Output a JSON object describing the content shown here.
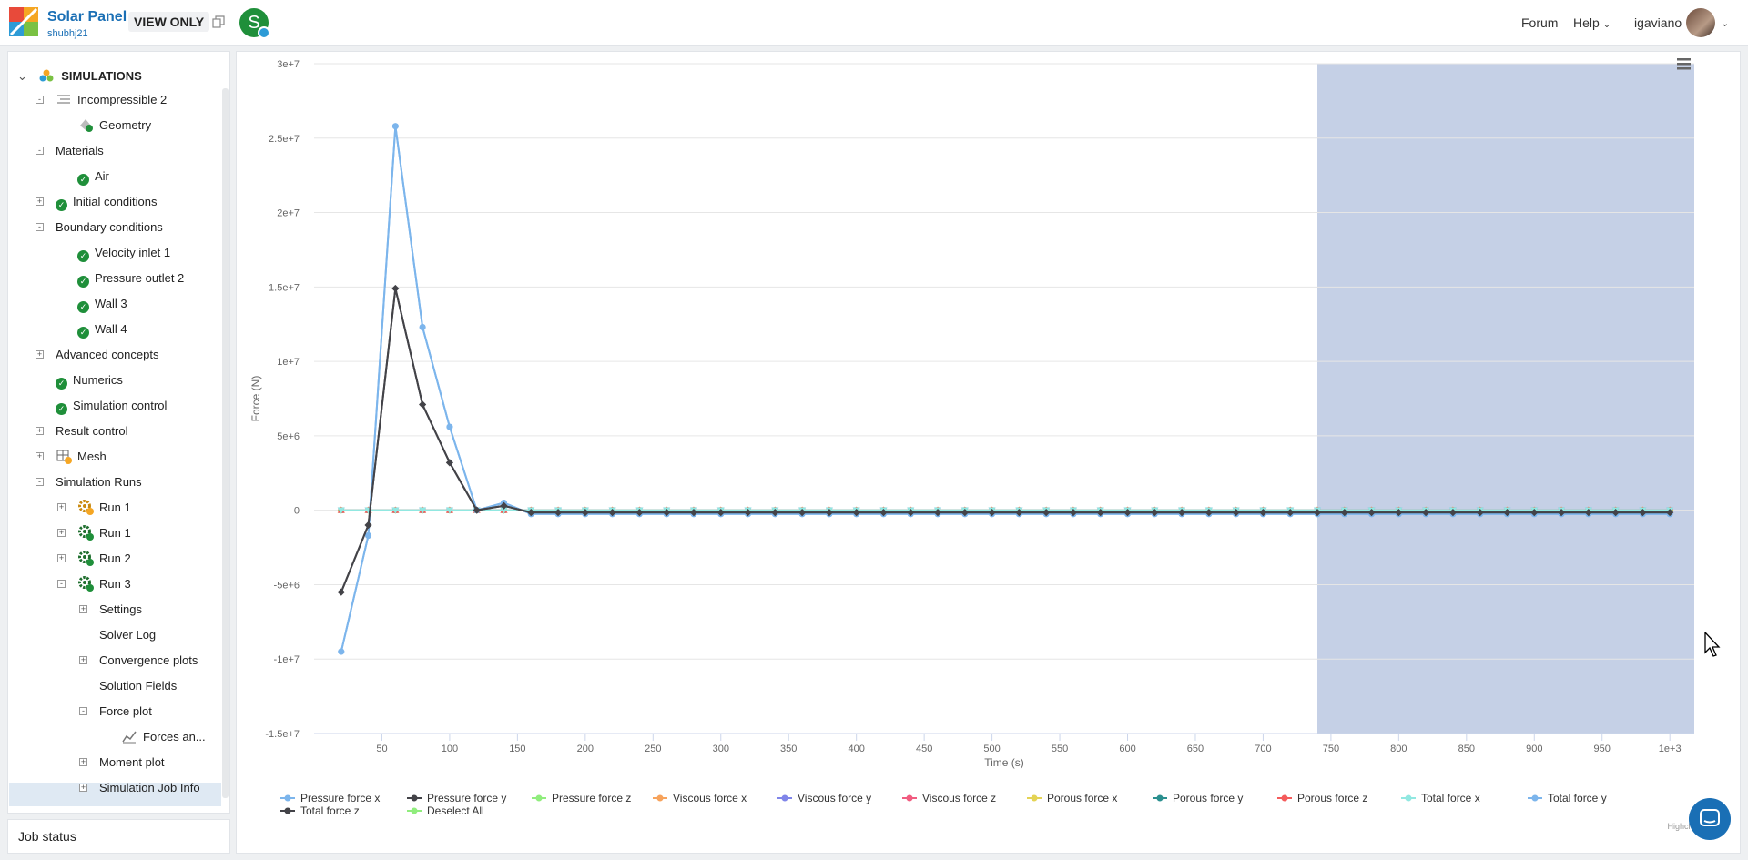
{
  "header": {
    "project_title": "Solar Panel",
    "project_owner": "shubhj21",
    "view_only": "VIEW ONLY",
    "avatar_letter": "S",
    "nav_forum": "Forum",
    "nav_help": "Help",
    "user_name": "igaviano"
  },
  "sidebar": {
    "root_label": "SIMULATIONS",
    "tree": [
      {
        "label": "Incompressible 2",
        "toggle": "-",
        "icon": "sim-icon"
      },
      {
        "label": "Geometry",
        "icon": "geometry-icon"
      },
      {
        "label": "Materials",
        "toggle": "-"
      },
      {
        "label": "Air",
        "icon": "check-icon"
      },
      {
        "label": "Initial conditions",
        "toggle": "+",
        "icon": "check-icon"
      },
      {
        "label": "Boundary conditions",
        "toggle": "-"
      },
      {
        "label": "Velocity inlet 1",
        "icon": "check-icon"
      },
      {
        "label": "Pressure outlet 2",
        "icon": "check-icon"
      },
      {
        "label": "Wall 3",
        "icon": "check-icon"
      },
      {
        "label": "Wall 4",
        "icon": "check-icon"
      },
      {
        "label": "Advanced concepts",
        "toggle": "+"
      },
      {
        "label": "Numerics",
        "icon": "check-icon"
      },
      {
        "label": "Simulation control",
        "icon": "check-icon"
      },
      {
        "label": "Result control",
        "toggle": "+"
      },
      {
        "label": "Mesh",
        "toggle": "+",
        "icon": "mesh-icon"
      },
      {
        "label": "Simulation Runs",
        "toggle": "-"
      },
      {
        "label": "Run 1",
        "toggle": "+",
        "icon": "gear-warning-icon"
      },
      {
        "label": "Run 1",
        "toggle": "+",
        "icon": "gear-check-icon"
      },
      {
        "label": "Run 2",
        "toggle": "+",
        "icon": "gear-check-icon"
      },
      {
        "label": "Run 3",
        "toggle": "-",
        "icon": "gear-check-icon"
      },
      {
        "label": "Settings",
        "toggle": "+"
      },
      {
        "label": "Solver Log"
      },
      {
        "label": "Convergence plots",
        "toggle": "+"
      },
      {
        "label": "Solution Fields"
      },
      {
        "label": "Force plot",
        "toggle": "-"
      },
      {
        "label": "Forces an...",
        "icon": "chart-icon",
        "selected": true
      },
      {
        "label": "Moment plot",
        "toggle": "+"
      },
      {
        "label": "Simulation Job Info",
        "toggle": "+"
      }
    ],
    "job_status": "Job status"
  },
  "chart_data": {
    "type": "line",
    "title": "",
    "xlabel": "Time (s)",
    "ylabel": "Force (N)",
    "xlim": [
      0,
      1000
    ],
    "ylim": [
      -15000000,
      30000000
    ],
    "x_ticks": [
      "50",
      "100",
      "150",
      "200",
      "250",
      "300",
      "350",
      "400",
      "450",
      "500",
      "550",
      "600",
      "650",
      "700",
      "750",
      "800",
      "850",
      "900",
      "950",
      "1e+3"
    ],
    "y_ticks": [
      "3e+7",
      "2.5e+7",
      "2e+7",
      "1.5e+7",
      "1e+7",
      "5e+6",
      "0",
      "-5e+6",
      "-1e+7",
      "-1.5e+7"
    ],
    "highlight_x_range": [
      740,
      1010
    ],
    "x": [
      20,
      40,
      60,
      80,
      100,
      120,
      140,
      160,
      180,
      200,
      220,
      240,
      260,
      280,
      300,
      320,
      340,
      360,
      380,
      400,
      420,
      440,
      460,
      480,
      500,
      520,
      540,
      560,
      580,
      600,
      620,
      640,
      660,
      680,
      700,
      720,
      740,
      760,
      780,
      800,
      820,
      840,
      860,
      880,
      900,
      920,
      940,
      960,
      980,
      1000
    ],
    "series": [
      {
        "name": "Pressure force x",
        "color": "#7cb5ec",
        "marker": "circle",
        "values": [
          -9500000,
          -1700000,
          25800000,
          12300000,
          5600000,
          0,
          500000,
          -250000,
          -250000,
          -250000,
          -250000,
          -250000,
          -250000,
          -250000,
          -250000,
          -250000,
          -250000,
          -250000,
          -250000,
          -250000,
          -250000,
          -250000,
          -250000,
          -250000,
          -250000,
          -250000,
          -250000,
          -250000,
          -250000,
          -250000,
          -250000,
          -250000,
          -250000,
          -250000,
          -250000,
          -250000,
          -250000,
          -250000,
          -250000,
          -250000,
          -250000,
          -250000,
          -250000,
          -250000,
          -250000,
          -250000,
          -250000,
          -250000,
          -250000,
          -250000
        ]
      },
      {
        "name": "Pressure force y",
        "color": "#434348",
        "marker": "diamond",
        "values": [
          -5500000,
          -1000000,
          14900000,
          7100000,
          3200000,
          0,
          300000,
          -150000,
          -150000,
          -150000,
          -150000,
          -150000,
          -150000,
          -150000,
          -150000,
          -150000,
          -150000,
          -150000,
          -150000,
          -150000,
          -150000,
          -150000,
          -150000,
          -150000,
          -150000,
          -150000,
          -150000,
          -150000,
          -150000,
          -150000,
          -150000,
          -150000,
          -150000,
          -150000,
          -150000,
          -150000,
          -150000,
          -150000,
          -150000,
          -150000,
          -150000,
          -150000,
          -150000,
          -150000,
          -150000,
          -150000,
          -150000,
          -150000,
          -150000,
          -150000
        ]
      },
      {
        "name": "Pressure force z",
        "color": "#90ed7d",
        "marker": "square",
        "values": [
          0,
          0,
          0,
          0,
          0,
          0,
          0,
          0,
          0,
          0,
          0,
          0,
          0,
          0,
          0,
          0,
          0,
          0,
          0,
          0,
          0,
          0,
          0,
          0,
          0,
          0,
          0,
          0,
          0,
          0,
          0,
          0,
          0,
          0,
          0,
          0,
          0,
          0,
          0,
          0,
          0,
          0,
          0,
          0,
          0,
          0,
          0,
          0,
          0,
          0
        ]
      },
      {
        "name": "Viscous force x",
        "color": "#f7a35c",
        "marker": "triangle",
        "values": [
          0,
          0,
          0,
          0,
          0,
          0,
          0,
          0,
          0,
          0,
          0,
          0,
          0,
          0,
          0,
          0,
          0,
          0,
          0,
          0,
          0,
          0,
          0,
          0,
          0,
          0,
          0,
          0,
          0,
          0,
          0,
          0,
          0,
          0,
          0,
          0,
          0,
          0,
          0,
          0,
          0,
          0,
          0,
          0,
          0,
          0,
          0,
          0,
          0,
          0
        ]
      },
      {
        "name": "Viscous force y",
        "color": "#8085e9",
        "marker": "triangle-down",
        "values": [
          0,
          0,
          0,
          0,
          0,
          0,
          0,
          0,
          0,
          0,
          0,
          0,
          0,
          0,
          0,
          0,
          0,
          0,
          0,
          0,
          0,
          0,
          0,
          0,
          0,
          0,
          0,
          0,
          0,
          0,
          0,
          0,
          0,
          0,
          0,
          0,
          0,
          0,
          0,
          0,
          0,
          0,
          0,
          0,
          0,
          0,
          0,
          0,
          0,
          0
        ]
      },
      {
        "name": "Viscous force z",
        "color": "#f15c80",
        "marker": "circle",
        "values": [
          0,
          0,
          0,
          0,
          0,
          0,
          0,
          0,
          0,
          0,
          0,
          0,
          0,
          0,
          0,
          0,
          0,
          0,
          0,
          0,
          0,
          0,
          0,
          0,
          0,
          0,
          0,
          0,
          0,
          0,
          0,
          0,
          0,
          0,
          0,
          0,
          0,
          0,
          0,
          0,
          0,
          0,
          0,
          0,
          0,
          0,
          0,
          0,
          0,
          0
        ]
      },
      {
        "name": "Porous force x",
        "color": "#e4d354",
        "marker": "diamond",
        "values": [
          0,
          0,
          0,
          0,
          0,
          0,
          0,
          0,
          0,
          0,
          0,
          0,
          0,
          0,
          0,
          0,
          0,
          0,
          0,
          0,
          0,
          0,
          0,
          0,
          0,
          0,
          0,
          0,
          0,
          0,
          0,
          0,
          0,
          0,
          0,
          0,
          0,
          0,
          0,
          0,
          0,
          0,
          0,
          0,
          0,
          0,
          0,
          0,
          0,
          0
        ]
      },
      {
        "name": "Porous force y",
        "color": "#2b908f",
        "marker": "square",
        "values": [
          0,
          0,
          0,
          0,
          0,
          0,
          0,
          0,
          0,
          0,
          0,
          0,
          0,
          0,
          0,
          0,
          0,
          0,
          0,
          0,
          0,
          0,
          0,
          0,
          0,
          0,
          0,
          0,
          0,
          0,
          0,
          0,
          0,
          0,
          0,
          0,
          0,
          0,
          0,
          0,
          0,
          0,
          0,
          0,
          0,
          0,
          0,
          0,
          0,
          0
        ]
      },
      {
        "name": "Porous force z",
        "color": "#f45b5b",
        "marker": "triangle",
        "values": [
          0,
          0,
          0,
          0,
          0,
          0,
          0,
          0,
          0,
          0,
          0,
          0,
          0,
          0,
          0,
          0,
          0,
          0,
          0,
          0,
          0,
          0,
          0,
          0,
          0,
          0,
          0,
          0,
          0,
          0,
          0,
          0,
          0,
          0,
          0,
          0,
          0,
          0,
          0,
          0,
          0,
          0,
          0,
          0,
          0,
          0,
          0,
          0,
          0,
          0
        ]
      },
      {
        "name": "Total force x",
        "color": "#91e8e1",
        "marker": "triangle-down",
        "values": [
          0,
          0,
          0,
          0,
          0,
          0,
          0,
          0,
          0,
          0,
          0,
          0,
          0,
          0,
          0,
          0,
          0,
          0,
          0,
          0,
          0,
          0,
          0,
          0,
          0,
          0,
          0,
          0,
          0,
          0,
          0,
          0,
          0,
          0,
          0,
          0,
          0,
          0,
          0,
          0,
          0,
          0,
          0,
          0,
          0,
          0,
          0,
          0,
          0,
          0
        ]
      },
      {
        "name": "Total force y",
        "color": "#7cb5ec",
        "marker": "circle",
        "values": [
          -9500000,
          -1700000,
          25800000,
          12300000,
          5600000,
          0,
          500000,
          -250000,
          -250000,
          -250000,
          -250000,
          -250000,
          -250000,
          -250000,
          -250000,
          -250000,
          -250000,
          -250000,
          -250000,
          -250000,
          -250000,
          -250000,
          -250000,
          -250000,
          -250000,
          -250000,
          -250000,
          -250000,
          -250000,
          -250000,
          -250000,
          -250000,
          -250000,
          -250000,
          -250000,
          -250000,
          -250000,
          -250000,
          -250000,
          -250000,
          -250000,
          -250000,
          -250000,
          -250000,
          -250000,
          -250000,
          -250000,
          -250000,
          -250000,
          -250000
        ]
      },
      {
        "name": "Total force z",
        "color": "#434348",
        "marker": "diamond",
        "values": [
          -5500000,
          -1000000,
          14900000,
          7100000,
          3200000,
          0,
          300000,
          -150000,
          -150000,
          -150000,
          -150000,
          -150000,
          -150000,
          -150000,
          -150000,
          -150000,
          -150000,
          -150000,
          -150000,
          -150000,
          -150000,
          -150000,
          -150000,
          -150000,
          -150000,
          -150000,
          -150000,
          -150000,
          -150000,
          -150000,
          -150000,
          -150000,
          -150000,
          -150000,
          -150000,
          -150000,
          -150000,
          -150000,
          -150000,
          -150000,
          -150000,
          -150000,
          -150000,
          -150000,
          -150000,
          -150000,
          -150000,
          -150000,
          -150000,
          -150000
        ]
      }
    ],
    "legend_extra": "Deselect All",
    "legend_placement": "bottom",
    "grid": true,
    "credits": "Highcharts.com"
  }
}
